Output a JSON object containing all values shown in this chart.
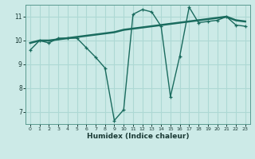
{
  "xlabel": "Humidex (Indice chaleur)",
  "ylabel": "",
  "background_color": "#cceae7",
  "grid_color": "#add8d4",
  "line_color": "#1a6b5e",
  "x_values": [
    0,
    1,
    2,
    3,
    4,
    5,
    6,
    7,
    8,
    9,
    10,
    11,
    12,
    13,
    14,
    15,
    16,
    17,
    18,
    19,
    20,
    21,
    22,
    23
  ],
  "curve1_y": [
    9.6,
    10.0,
    9.9,
    10.1,
    10.1,
    10.1,
    9.7,
    9.3,
    8.85,
    6.65,
    7.1,
    11.1,
    11.3,
    11.2,
    10.6,
    7.65,
    9.35,
    11.4,
    10.75,
    10.8,
    10.85,
    11.0,
    10.65,
    10.6
  ],
  "curve2_y": [
    9.9,
    10.0,
    10.0,
    10.05,
    10.1,
    10.15,
    10.2,
    10.25,
    10.3,
    10.35,
    10.45,
    10.5,
    10.55,
    10.6,
    10.65,
    10.7,
    10.75,
    10.8,
    10.85,
    10.9,
    10.95,
    11.0,
    10.85,
    10.8
  ],
  "ylim": [
    6.5,
    11.5
  ],
  "xlim": [
    -0.5,
    23.5
  ],
  "yticks": [
    7,
    8,
    9,
    10,
    11
  ],
  "xticks": [
    0,
    1,
    2,
    3,
    4,
    5,
    6,
    7,
    8,
    9,
    10,
    11,
    12,
    13,
    14,
    15,
    16,
    17,
    18,
    19,
    20,
    21,
    22,
    23
  ]
}
